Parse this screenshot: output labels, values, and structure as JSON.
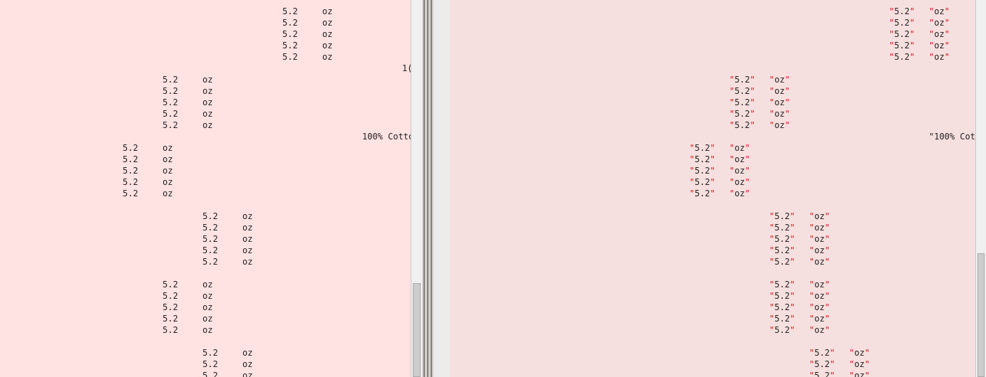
{
  "value_text": "5.2",
  "unit_text": "oz",
  "partial_left_1": "1(",
  "partial_left_2": "100% Cotto",
  "partial_right_2": "\"100% Cot",
  "quoted_value": "\"5.2\"",
  "quoted_unit": "\"oz\""
}
